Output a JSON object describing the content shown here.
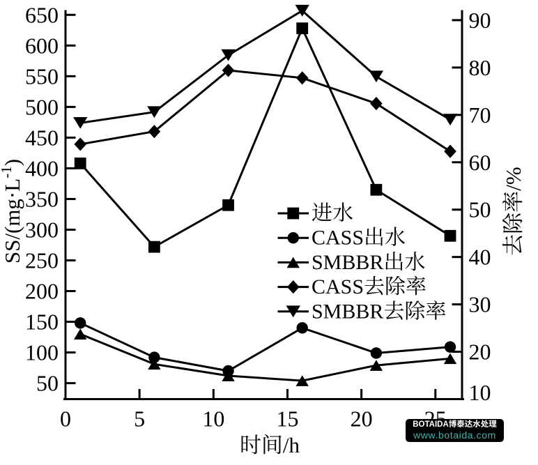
{
  "figure": {
    "background": "#ffffff",
    "ink_color": "#000000"
  },
  "chart_data": {
    "type": "line",
    "title": "",
    "grid": false,
    "x": [
      1,
      6,
      11,
      16,
      21,
      26
    ],
    "series": [
      {
        "key": "influent",
        "name": "进水",
        "axis": "left",
        "marker": "square",
        "values": [
          408,
          272,
          340,
          628,
          365,
          290
        ]
      },
      {
        "key": "cass-effluent",
        "name": "CASS出水",
        "axis": "left",
        "marker": "circle",
        "values": [
          148,
          92,
          70,
          140,
          99,
          109
        ]
      },
      {
        "key": "smbbr-effluent",
        "name": "SMBBR出水",
        "axis": "left",
        "marker": "triangle-up",
        "values": [
          130,
          81,
          62,
          54,
          79,
          90
        ]
      },
      {
        "key": "cass-removal",
        "name": "CASS去除率",
        "axis": "right",
        "marker": "diamond",
        "values": [
          63.8,
          66.5,
          79.4,
          77.8,
          72.4,
          62.3
        ]
      },
      {
        "key": "smbbr-removal",
        "name": "SMBBR去除率",
        "axis": "right",
        "marker": "triangle-down",
        "values": [
          68.3,
          70.6,
          82.6,
          92.0,
          78.1,
          69.0
        ]
      }
    ],
    "x_axis": {
      "label": "时间/h",
      "ticks": [
        0,
        5,
        10,
        15,
        20,
        25
      ],
      "range": [
        0,
        26.8
      ]
    },
    "left_axis": {
      "label": "SS/(mg·L⁻¹)",
      "label_parts": [
        {
          "t": "SS/(mg·L"
        },
        {
          "t": "-1",
          "sup": true
        },
        {
          "t": ")"
        }
      ],
      "ticks": [
        50,
        100,
        150,
        200,
        250,
        300,
        350,
        400,
        450,
        500,
        550,
        600,
        650
      ],
      "range": [
        24,
        656
      ]
    },
    "right_axis": {
      "label": "去除率/%",
      "ticks": [
        10,
        20,
        30,
        40,
        50,
        60,
        70,
        80,
        90
      ],
      "range": [
        10,
        91.9
      ]
    },
    "legend": {
      "position": "inside-center-right",
      "entries": [
        "进水",
        "CASS出水",
        "SMBBR出水",
        "CASS去除率",
        "SMBBR去除率"
      ]
    },
    "line_color": "#000000",
    "marker_color": "#000000"
  },
  "watermark": {
    "line1": "BOTAIDA博泰达水处理",
    "line2": "www.botaida.com",
    "bg_color": "#000000",
    "line1_color": "#ffffff",
    "line2_color": "#3cb4ac"
  }
}
